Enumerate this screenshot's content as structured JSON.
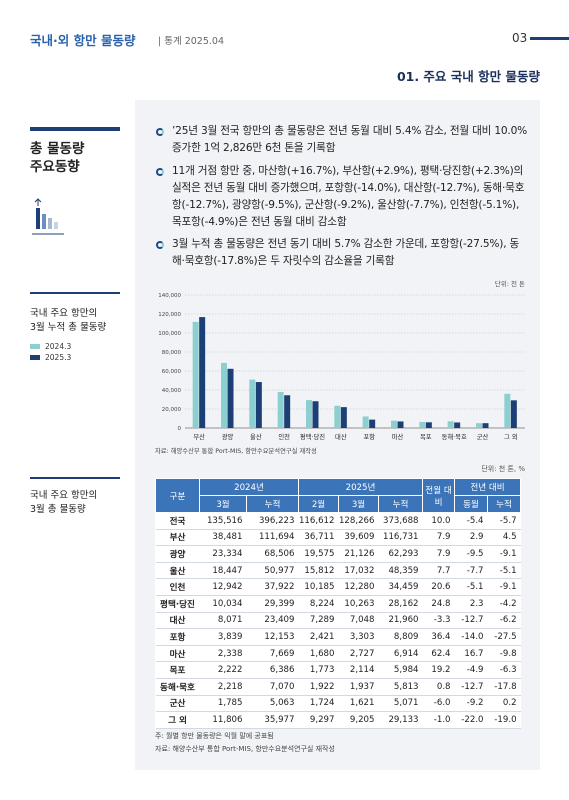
{
  "header": {
    "title": "국내·외 항만 물동량",
    "subtitle": "| 통계 2025.04",
    "page": "03",
    "section": "01. 주요 국내 항만 물동량"
  },
  "sidebar": {
    "heading": [
      "총 물동량",
      "주요동향"
    ],
    "chart_caption": [
      "국내 주요 항만의",
      "3월 누적 총 물동량"
    ],
    "table_caption": [
      "국내 주요 항만의",
      "3월 총 물동량"
    ]
  },
  "bullets": [
    "’25년 3월 전국 항만의 총 물동량은 전년 동월 대비 5.4% 감소, 전월 대비 10.0% 증가한 1억 2,826만 6천 톤을 기록함",
    "11개 거점 항만 중, 마산항(+16.7%), 부산항(+2.9%), 평택·당진항(+2.3%)의 실적은 전년 동월 대비 증가했으며, 포항항(-14.0%), 대산항(-12.7%), 동해·묵호항(-12.7%), 광양항(-9.5%), 군산항(-9.2%), 울산항(-7.7%), 인천항(-5.1%), 목포항(-4.9%)은 전년 동월 대비 감소함",
    "3월 누적 총 물동량은 전년 동기 대비 5.7% 감소한 가운데, 포항항(-27.5%), 동해·묵호항(-17.8%)은 두 자릿수의 감소율을 기록함"
  ],
  "chart_data": {
    "type": "bar",
    "unit": "단위: 천 톤",
    "categories": [
      "부산",
      "광양",
      "울산",
      "인천",
      "평택·당진",
      "대산",
      "포항",
      "마산",
      "목포",
      "동해·묵호",
      "군산",
      "그 외"
    ],
    "series": [
      {
        "name": "2024.3",
        "color": "#8ccfd0",
        "values": [
          111694,
          68506,
          50977,
          37922,
          29399,
          23409,
          12153,
          7669,
          6386,
          7070,
          5063,
          35977
        ]
      },
      {
        "name": "2025.3",
        "color": "#1c3f75",
        "values": [
          116731,
          62293,
          48359,
          34459,
          28162,
          21960,
          8809,
          6914,
          5984,
          5813,
          5071,
          29133
        ]
      }
    ],
    "ylim": [
      0,
      140000
    ],
    "yticks": [
      0,
      {
        "value": 20000,
        "label": "20,000"
      },
      {
        "value": 40000,
        "label": "40,000"
      },
      {
        "value": 60000,
        "label": "60,000"
      },
      {
        "value": 80000,
        "label": "80,000"
      },
      {
        "value": 100000,
        "label": "100,000"
      },
      {
        "value": 120000,
        "label": "120,000"
      },
      {
        "value": 140000,
        "label": "140,000"
      }
    ],
    "grid": true,
    "source": "자료: 해양수산부 통합 Port-MIS, 항만수요분석연구실 재작성"
  },
  "table": {
    "unit": "단위: 천 톤, %",
    "header_top": [
      "구분",
      "2024년",
      "2025년",
      "전월 대비",
      "전년 대비"
    ],
    "header_sub": [
      "3월",
      "누적",
      "2월",
      "3월",
      "누적",
      "동월",
      "누적"
    ],
    "rows": [
      [
        "전국",
        "135,516",
        "396,223",
        "116,612",
        "128,266",
        "373,688",
        "10.0",
        "-5.4",
        "-5.7"
      ],
      [
        "부산",
        "38,481",
        "111,694",
        "36,711",
        "39,609",
        "116,731",
        "7.9",
        "2.9",
        "4.5"
      ],
      [
        "광양",
        "23,334",
        "68,506",
        "19,575",
        "21,126",
        "62,293",
        "7.9",
        "-9.5",
        "-9.1"
      ],
      [
        "울산",
        "18,447",
        "50,977",
        "15,812",
        "17,032",
        "48,359",
        "7.7",
        "-7.7",
        "-5.1"
      ],
      [
        "인천",
        "12,942",
        "37,922",
        "10,185",
        "12,280",
        "34,459",
        "20.6",
        "-5.1",
        "-9.1"
      ],
      [
        "평택·당진",
        "10,034",
        "29,399",
        "8,224",
        "10,263",
        "28,162",
        "24.8",
        "2.3",
        "-4.2"
      ],
      [
        "대산",
        "8,071",
        "23,409",
        "7,289",
        "7,048",
        "21,960",
        "-3.3",
        "-12.7",
        "-6.2"
      ],
      [
        "포항",
        "3,839",
        "12,153",
        "2,421",
        "3,303",
        "8,809",
        "36.4",
        "-14.0",
        "-27.5"
      ],
      [
        "마산",
        "2,338",
        "7,669",
        "1,680",
        "2,727",
        "6,914",
        "62.4",
        "16.7",
        "-9.8"
      ],
      [
        "목포",
        "2,222",
        "6,386",
        "1,773",
        "2,114",
        "5,984",
        "19.2",
        "-4.9",
        "-6.3"
      ],
      [
        "동해·묵호",
        "2,218",
        "7,070",
        "1,922",
        "1,937",
        "5,813",
        "0.8",
        "-12.7",
        "-17.8"
      ],
      [
        "군산",
        "1,785",
        "5,063",
        "1,724",
        "1,621",
        "5,071",
        "-6.0",
        "-9.2",
        "0.2"
      ],
      [
        "그 외",
        "11,806",
        "35,977",
        "9,297",
        "9,205",
        "29,133",
        "-1.0",
        "-22.0",
        "-19.0"
      ]
    ]
  },
  "notes": [
    "주: 월별 항만 물동량은 익월 말에 공표됨",
    "자료: 해양수산부 통합 Port-MIS, 항만수요분석연구실 재작성"
  ]
}
